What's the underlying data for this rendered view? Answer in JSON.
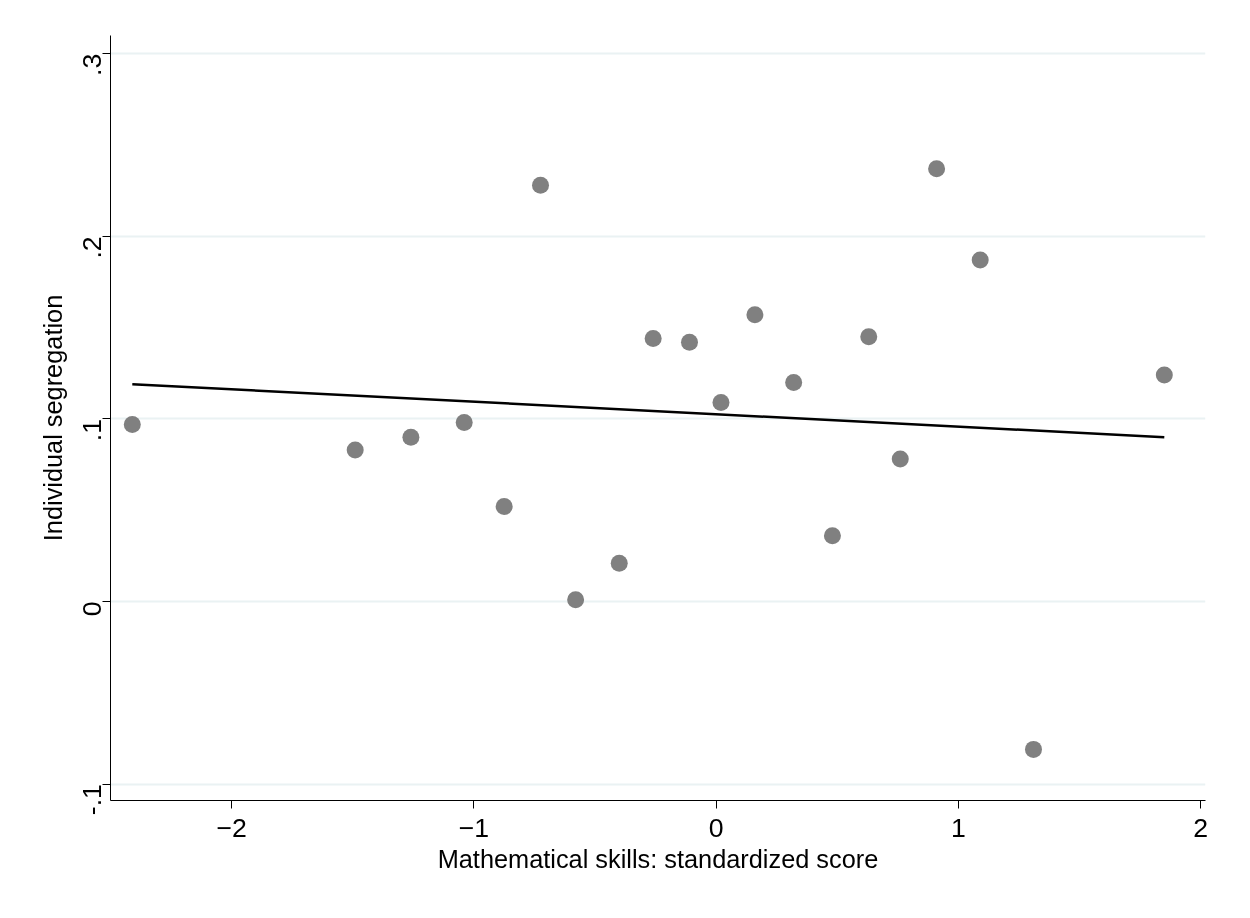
{
  "chart_data": {
    "type": "scatter",
    "xlabel": "Mathematical skills: standardized score",
    "ylabel": "Individual segregation",
    "series": [
      {
        "color": "#808080",
        "marker": "circle",
        "x": [
          -2.41,
          -1.49,
          -1.26,
          -1.04,
          -0.875,
          -0.725,
          -0.58,
          -0.4,
          -0.26,
          -0.11,
          0.02,
          0.16,
          0.32,
          0.48,
          0.63,
          0.76,
          0.91,
          1.09,
          1.31,
          1.85
        ],
        "values": [
          0.097,
          0.083,
          0.09,
          0.098,
          0.052,
          0.228,
          0.001,
          0.021,
          0.144,
          0.142,
          0.109,
          0.157,
          0.12,
          0.036,
          0.145,
          0.078,
          0.237,
          0.187,
          -0.081,
          0.124
        ]
      },
      {
        "type": "line",
        "color": "#000000",
        "marker": "none",
        "x": [
          -2.41,
          1.85
        ],
        "values": [
          0.119,
          0.09
        ]
      }
    ],
    "xlim": [
      -2.5,
      2.02
    ],
    "ylim": [
      -0.109,
      0.31
    ],
    "xticks": [
      -2,
      -1,
      0,
      1,
      2
    ],
    "yticks": [
      {
        "value": -0.1,
        "label": "-.1"
      },
      0,
      {
        "value": 0.1,
        "label": ".1"
      },
      {
        "value": 0.2,
        "label": ".2"
      },
      {
        "value": 0.3,
        "label": ".3"
      }
    ],
    "grid": "y"
  }
}
